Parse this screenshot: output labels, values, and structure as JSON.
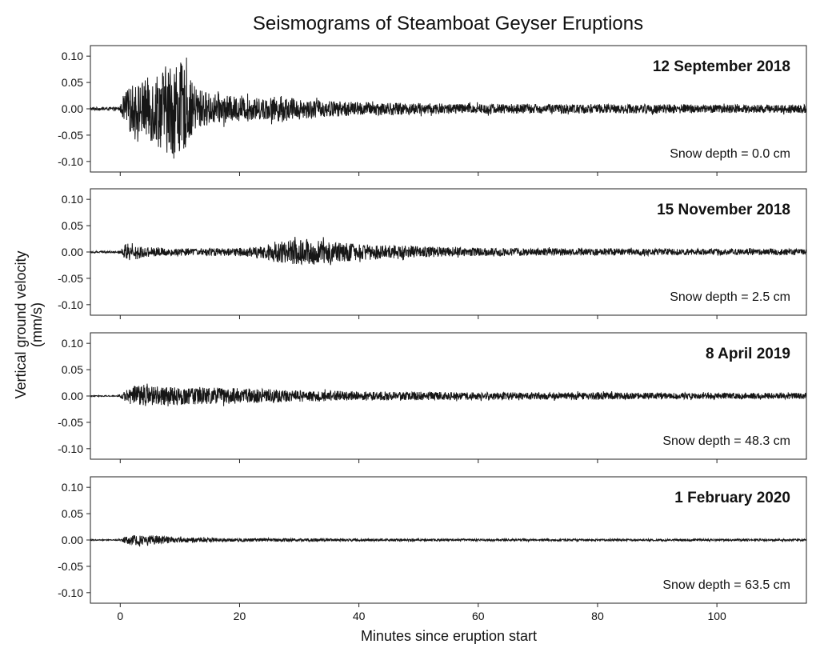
{
  "chart_data": {
    "type": "line",
    "title": "Seismograms of Steamboat Geyser Eruptions",
    "xlabel": "Minutes since eruption start",
    "ylabel": [
      "Vertical ground velocity",
      "(mm/s)"
    ],
    "xlim": [
      -5,
      115
    ],
    "ylim": [
      -0.12,
      0.12
    ],
    "xticks": [
      0,
      20,
      40,
      60,
      80,
      100
    ],
    "yticks": [
      0.1,
      0.05,
      0.0,
      -0.05,
      -0.1
    ],
    "ytick_labels": [
      "0.10",
      "0.05",
      "0.00",
      "-0.05",
      "-0.10"
    ],
    "series_color": "#161616",
    "panels": [
      {
        "date": "12 September 2018",
        "snow": "Snow depth = 0.0 cm",
        "envelope": {
          "x": [
            -5,
            -0.5,
            0,
            1,
            2,
            4,
            6,
            8,
            9,
            10,
            11,
            12,
            13,
            15,
            18,
            21,
            24,
            27,
            30,
            33,
            36,
            40,
            45,
            50,
            55,
            60,
            70,
            80,
            90,
            100,
            110,
            115
          ],
          "amp": [
            0.003,
            0.003,
            0.006,
            0.035,
            0.045,
            0.055,
            0.07,
            0.085,
            0.095,
            0.09,
            0.075,
            0.05,
            0.04,
            0.03,
            0.025,
            0.022,
            0.02,
            0.025,
            0.018,
            0.017,
            0.015,
            0.013,
            0.012,
            0.011,
            0.01,
            0.01,
            0.009,
            0.009,
            0.009,
            0.008,
            0.008,
            0.008
          ]
        }
      },
      {
        "date": "15 November 2018",
        "snow": "Snow depth = 2.5 cm",
        "envelope": {
          "x": [
            -5,
            -0.5,
            0,
            1,
            2,
            3,
            4,
            6,
            10,
            15,
            20,
            24,
            26,
            30,
            32,
            36,
            40,
            45,
            50,
            55,
            60,
            70,
            80,
            90,
            100,
            110,
            115
          ],
          "amp": [
            0.002,
            0.002,
            0.004,
            0.015,
            0.018,
            0.014,
            0.01,
            0.008,
            0.007,
            0.007,
            0.008,
            0.012,
            0.02,
            0.024,
            0.025,
            0.02,
            0.016,
            0.013,
            0.011,
            0.009,
            0.008,
            0.007,
            0.007,
            0.006,
            0.006,
            0.006,
            0.006
          ]
        }
      },
      {
        "date": "8 April 2019",
        "snow": "Snow depth = 48.3 cm",
        "envelope": {
          "x": [
            -5,
            -0.5,
            0,
            1,
            2,
            3,
            5,
            8,
            12,
            16,
            20,
            25,
            30,
            35,
            40,
            50,
            60,
            70,
            80,
            90,
            100,
            110,
            115
          ],
          "amp": [
            0.001,
            0.001,
            0.003,
            0.012,
            0.018,
            0.02,
            0.019,
            0.017,
            0.016,
            0.016,
            0.015,
            0.013,
            0.011,
            0.01,
            0.009,
            0.008,
            0.007,
            0.007,
            0.007,
            0.006,
            0.006,
            0.006,
            0.006
          ]
        }
      },
      {
        "date": "1 February 2020",
        "snow": "Snow depth = 63.5 cm",
        "envelope": {
          "x": [
            -5,
            -0.5,
            0,
            1,
            2,
            3,
            5,
            7,
            10,
            15,
            20,
            30,
            40,
            60,
            80,
            100,
            115
          ],
          "amp": [
            0.001,
            0.001,
            0.002,
            0.007,
            0.009,
            0.01,
            0.009,
            0.007,
            0.005,
            0.004,
            0.003,
            0.003,
            0.0025,
            0.002,
            0.002,
            0.002,
            0.002
          ]
        }
      }
    ]
  }
}
